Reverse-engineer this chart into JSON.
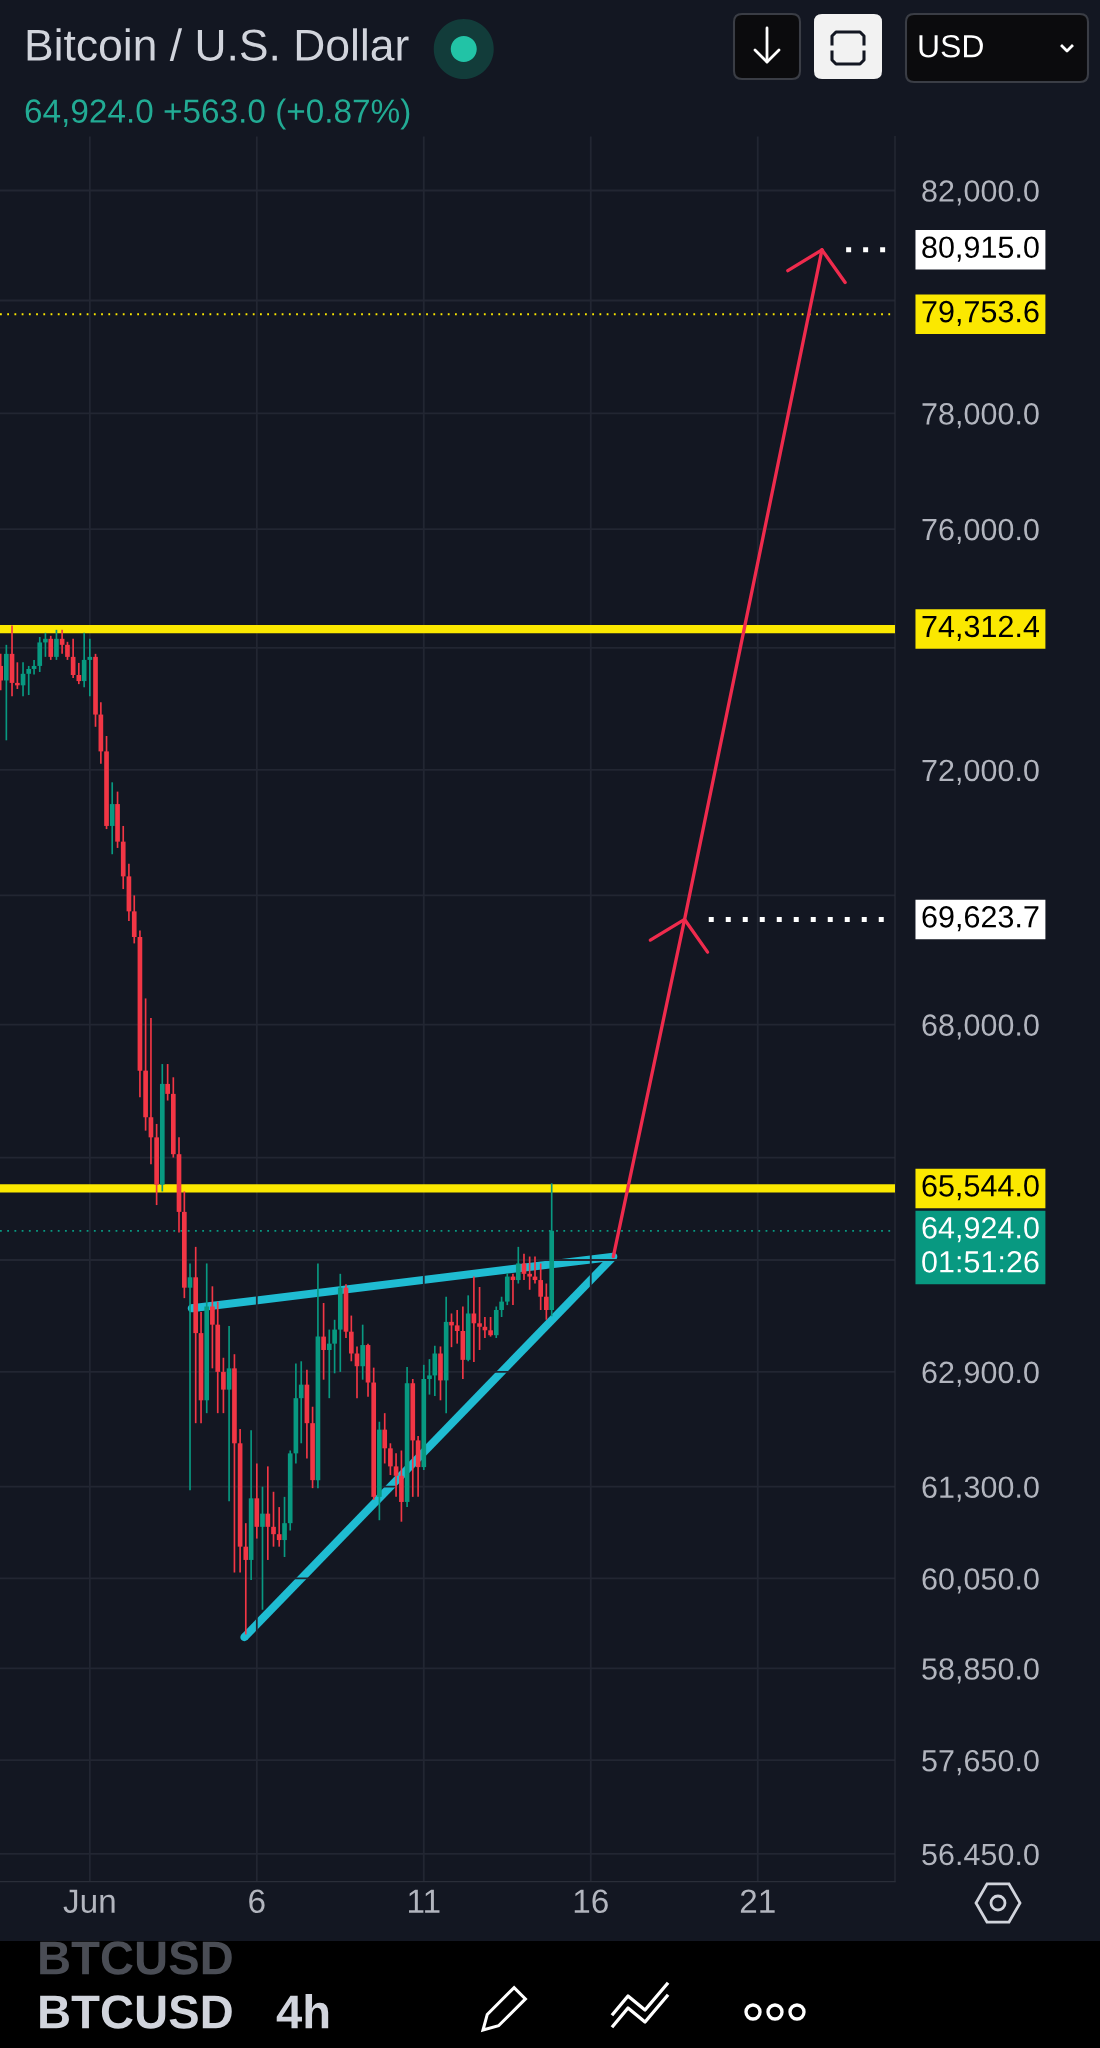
{
  "chart_data": {
    "type": "candlestick",
    "title": "Bitcoin / U.S. Dollar",
    "subtitle": "64,924.0 +563.0 (+0.87%)",
    "x": [
      -1.67,
      -1.5,
      -1.33,
      -1.17,
      -1,
      -0.83,
      -0.67,
      -0.5,
      -0.33,
      -0.17,
      0,
      0.17,
      0.33,
      0.5,
      0.67,
      0.83,
      1,
      1.17,
      1.33,
      1.5,
      1.67,
      1.83,
      2,
      2.17,
      2.33,
      2.5,
      2.67,
      2.83,
      3,
      3.17,
      3.33,
      3.5,
      3.67,
      3.83,
      4,
      4.17,
      4.33,
      4.5,
      4.67,
      4.83,
      5,
      5.17,
      5.33,
      5.5,
      5.67,
      5.83,
      6,
      6.17,
      6.33,
      6.5,
      6.67,
      6.83,
      7,
      7.17,
      7.33,
      7.5,
      7.67,
      7.83,
      8,
      8.17,
      8.33,
      8.5,
      8.67,
      8.83,
      9,
      9.17,
      9.33,
      9.5,
      9.67,
      9.83,
      10,
      10.17,
      10.33,
      10.5,
      10.67,
      10.83,
      11,
      11.17,
      11.33,
      11.5,
      11.67,
      11.83,
      12,
      12.17,
      12.33,
      12.5,
      12.67,
      12.83,
      13,
      13.17,
      13.33,
      13.5,
      13.67,
      13.83,
      14,
      14.17,
      14.33,
      14.5,
      14.67,
      14.83
    ],
    "ohlc": [
      [
        73700,
        73900,
        73300,
        73460
      ],
      [
        73460,
        74050,
        72480,
        73900
      ],
      [
        73900,
        74370,
        73200,
        73420
      ],
      [
        73420,
        73760,
        73320,
        73380
      ],
      [
        73380,
        73760,
        73200,
        73570
      ],
      [
        73570,
        73700,
        73220,
        73650
      ],
      [
        73650,
        73800,
        73560,
        73700
      ],
      [
        73700,
        74180,
        73600,
        74090
      ],
      [
        74090,
        74250,
        73850,
        74150
      ],
      [
        74150,
        74200,
        73800,
        73850
      ],
      [
        73850,
        74300,
        73800,
        74150
      ],
      [
        74150,
        74300,
        73900,
        74050
      ],
      [
        74050,
        74100,
        73800,
        73850
      ],
      [
        73850,
        74150,
        73500,
        73550
      ],
      [
        73550,
        73750,
        73400,
        73450
      ],
      [
        73450,
        74250,
        73350,
        73800
      ],
      [
        73800,
        74150,
        73200,
        73850
      ],
      [
        73850,
        73900,
        72700,
        72900
      ],
      [
        72900,
        73100,
        72100,
        72300
      ],
      [
        72300,
        72550,
        71050,
        71100
      ],
      [
        71100,
        71800,
        70650,
        71450
      ],
      [
        71450,
        71650,
        70750,
        70850
      ],
      [
        70850,
        71100,
        70100,
        70300
      ],
      [
        70300,
        70500,
        69600,
        69750
      ],
      [
        69750,
        70000,
        69250,
        69350
      ],
      [
        69350,
        69450,
        66900,
        67300
      ],
      [
        67300,
        68400,
        66400,
        66600
      ],
      [
        66600,
        68100,
        65900,
        66300
      ],
      [
        66300,
        66500,
        65300,
        65600
      ],
      [
        65600,
        67400,
        65500,
        67100
      ],
      [
        67100,
        67400,
        66850,
        66950
      ],
      [
        66950,
        67200,
        66000,
        66050
      ],
      [
        66050,
        66300,
        64900,
        65200
      ],
      [
        65200,
        65500,
        63950,
        64100
      ],
      [
        64100,
        64450,
        61250,
        64250
      ],
      [
        64250,
        64690,
        62180,
        63450
      ],
      [
        63450,
        63750,
        62180,
        62500
      ],
      [
        62500,
        64450,
        62320,
        63830
      ],
      [
        63830,
        64120,
        62950,
        63570
      ],
      [
        63570,
        63900,
        62320,
        62900
      ],
      [
        62900,
        63100,
        62320,
        62650
      ],
      [
        62650,
        63550,
        61100,
        62950
      ],
      [
        62950,
        63150,
        60130,
        61900
      ],
      [
        61900,
        62100,
        60130,
        60480
      ],
      [
        60480,
        60800,
        59300,
        60300
      ],
      [
        60300,
        62080,
        60030,
        61140
      ],
      [
        61140,
        61620,
        60590,
        60750
      ],
      [
        60750,
        61300,
        59630,
        60930
      ],
      [
        60930,
        61580,
        60300,
        60750
      ],
      [
        60750,
        61230,
        60480,
        60650
      ],
      [
        60650,
        61020,
        60480,
        60570
      ],
      [
        60570,
        61160,
        60340,
        60800
      ],
      [
        60800,
        61800,
        60700,
        61760
      ],
      [
        61760,
        63020,
        61620,
        62530
      ],
      [
        62530,
        63050,
        61900,
        62720
      ],
      [
        62720,
        62930,
        61690,
        62180
      ],
      [
        62180,
        62410,
        61280,
        61390
      ],
      [
        61390,
        64450,
        61280,
        63400
      ],
      [
        63400,
        63880,
        62790,
        63210
      ],
      [
        63210,
        63500,
        62530,
        63300
      ],
      [
        63300,
        63640,
        62880,
        63500
      ],
      [
        63500,
        64300,
        62900,
        64100
      ],
      [
        64100,
        64150,
        63380,
        63470
      ],
      [
        63470,
        63700,
        63050,
        63160
      ],
      [
        63160,
        63260,
        62530,
        62980
      ],
      [
        62980,
        63570,
        62790,
        63280
      ],
      [
        63280,
        63300,
        62550,
        62750
      ],
      [
        62750,
        62960,
        61120,
        61160
      ],
      [
        61160,
        62200,
        60840,
        62090
      ],
      [
        62090,
        62320,
        61620,
        61830
      ],
      [
        61830,
        61900,
        61460,
        61580
      ],
      [
        61580,
        61760,
        61160,
        61450
      ],
      [
        61450,
        61800,
        60820,
        61090
      ],
      [
        61090,
        62970,
        61020,
        62740
      ],
      [
        62740,
        62800,
        61160,
        61940
      ],
      [
        61940,
        62000,
        61160,
        61570
      ],
      [
        61570,
        63000,
        61530,
        62800
      ],
      [
        62800,
        63080,
        62580,
        62850
      ],
      [
        62850,
        63270,
        62560,
        63160
      ],
      [
        63160,
        63260,
        62500,
        62780
      ],
      [
        62780,
        63970,
        62320,
        63610
      ],
      [
        63610,
        63730,
        63250,
        63560
      ],
      [
        63560,
        63780,
        63300,
        63480
      ],
      [
        63480,
        63830,
        62800,
        63070
      ],
      [
        63070,
        63990,
        63050,
        63730
      ],
      [
        63730,
        64260,
        63040,
        63590
      ],
      [
        63590,
        64110,
        63210,
        63540
      ],
      [
        63540,
        63680,
        63380,
        63490
      ],
      [
        63490,
        63680,
        63400,
        63420
      ],
      [
        63420,
        63830,
        63380,
        63780
      ],
      [
        63780,
        63970,
        63680,
        63900
      ],
      [
        63900,
        64310,
        63850,
        64260
      ],
      [
        64260,
        64300,
        63850,
        64210
      ],
      [
        64210,
        64690,
        64160,
        64450
      ],
      [
        64450,
        64590,
        64210,
        64300
      ],
      [
        64300,
        64550,
        64070,
        64260
      ],
      [
        64260,
        64550,
        64160,
        64210
      ],
      [
        64210,
        64450,
        63780,
        63970
      ],
      [
        63970,
        64160,
        63640,
        63780
      ],
      [
        63780,
        65620,
        63690,
        64924
      ]
    ],
    "colors": [
      "#f23645",
      "#089981",
      "#f23645",
      "#f23645",
      "#089981",
      "#089981",
      "#089981",
      "#089981",
      "#089981",
      "#f23645",
      "#089981",
      "#f23645",
      "#f23645",
      "#f23645",
      "#f23645",
      "#089981",
      "#089981",
      "#f23645",
      "#f23645",
      "#f23645",
      "#089981",
      "#f23645",
      "#f23645",
      "#f23645",
      "#f23645",
      "#f23645",
      "#f23645",
      "#f23645",
      "#f23645",
      "#089981",
      "#f23645",
      "#f23645",
      "#f23645",
      "#f23645",
      "#089981",
      "#f23645",
      "#f23645",
      "#089981",
      "#f23645",
      "#f23645",
      "#f23645",
      "#089981",
      "#f23645",
      "#f23645",
      "#f23645",
      "#089981",
      "#f23645",
      "#089981",
      "#f23645",
      "#f23645",
      "#f23645",
      "#089981",
      "#089981",
      "#089981",
      "#089981",
      "#f23645",
      "#f23645",
      "#089981",
      "#f23645",
      "#089981",
      "#089981",
      "#089981",
      "#f23645",
      "#f23645",
      "#f23645",
      "#089981",
      "#f23645",
      "#f23645",
      "#089981",
      "#f23645",
      "#f23645",
      "#f23645",
      "#f23645",
      "#089981",
      "#f23645",
      "#f23645",
      "#089981",
      "#089981",
      "#089981",
      "#f23645",
      "#089981",
      "#f23645",
      "#f23645",
      "#f23645",
      "#089981",
      "#f23645",
      "#f23645",
      "#f23645",
      "#f23645",
      "#089981",
      "#089981",
      "#089981",
      "#f23645",
      "#089981",
      "#f23645",
      "#f23645",
      "#f23645",
      "#f23645",
      "#f23645",
      "#089981"
    ],
    "xlim": [
      -1.69,
      25.11
    ],
    "xticks": [
      {
        "value": 1,
        "label": "Jun"
      },
      6,
      11,
      16,
      21
    ],
    "ylim": [
      56100,
      83000
    ],
    "log": true,
    "yticks": [
      {
        "value": 82000,
        "label": "82,000.0"
      },
      {
        "value": 80000,
        "label": null
      },
      {
        "value": 78000,
        "label": "78,000.0"
      },
      {
        "value": 76000,
        "label": "76,000.0"
      },
      {
        "value": 74000,
        "label": null
      },
      {
        "value": 72000,
        "label": "72,000.0"
      },
      {
        "value": 70000,
        "label": null
      },
      {
        "value": 68000,
        "label": "68,000.0"
      },
      {
        "value": 66000,
        "label": null
      },
      {
        "value": 64500,
        "label": null
      },
      {
        "value": 62900,
        "label": "62,900.0"
      },
      {
        "value": 61300,
        "label": "61,300.0"
      },
      {
        "value": 60050,
        "label": "60,050.0"
      },
      {
        "value": 58850,
        "label": "58,850.0"
      },
      {
        "value": 57650,
        "label": "57,650.0"
      },
      {
        "value": 56450,
        "label": "56.450.0"
      }
    ],
    "grid": true,
    "ref_lines": [
      {
        "axis": "y",
        "value": 74312.4,
        "label": "74,312.4",
        "color": "#fbe800",
        "line_style": "solid"
      },
      {
        "axis": "y",
        "value": 65544.0,
        "label": "65,544.0",
        "color": "#fbe800",
        "line_style": "solid"
      },
      {
        "axis": "y",
        "value": 79753.6,
        "label": "79,753.6",
        "color": "#fbe800",
        "line_style": "dotted"
      },
      {
        "axis": "y",
        "value": 64924.0,
        "label": "64,924.0\n01:51:26",
        "color": "#089981",
        "line_style": "dotted"
      },
      {
        "axis": "y",
        "value": 80915.0,
        "label": "80,915.0",
        "color": "#ffffff",
        "line_style": "dotted"
      },
      {
        "axis": "y",
        "value": 69623.7,
        "label": "69,623.7",
        "color": "#ffffff",
        "line_style": "dotted"
      }
    ],
    "annotations": [
      "USD",
      "BTCUSD",
      "BTCUSD",
      "4h"
    ]
  }
}
